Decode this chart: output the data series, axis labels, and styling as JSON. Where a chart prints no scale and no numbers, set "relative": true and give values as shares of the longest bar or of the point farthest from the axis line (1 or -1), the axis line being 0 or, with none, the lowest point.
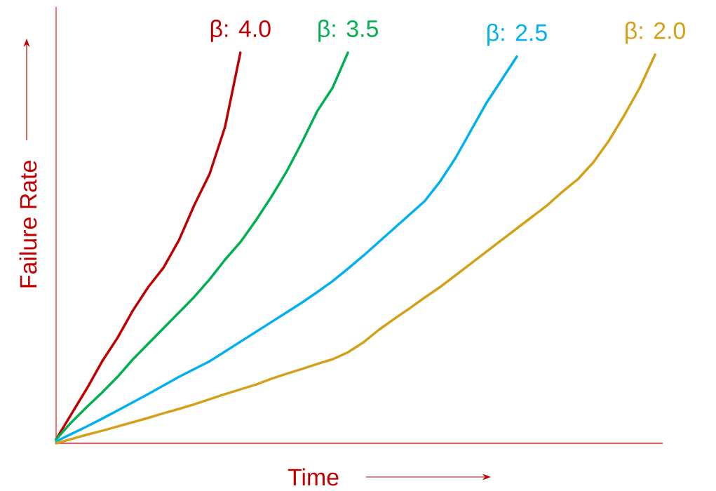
{
  "chart_data": {
    "type": "line",
    "relative": true,
    "xlabel": "Time",
    "ylabel": "Failure Rate",
    "categories": [
      null,
      null,
      null,
      null,
      null,
      null,
      null,
      null,
      null,
      null,
      null,
      null,
      null,
      null,
      null,
      null,
      null,
      null,
      null,
      null,
      null,
      null,
      null,
      null,
      null,
      null,
      null,
      null,
      null,
      null,
      null,
      null,
      null,
      null,
      null,
      null,
      null,
      null,
      null,
      null
    ],
    "series": [
      {
        "name": "β: 4.0",
        "color": "#c00000",
        "values": [
          0.01,
          0.075,
          0.14,
          0.21,
          0.27,
          0.34,
          0.4,
          0.45,
          0.52,
          0.61,
          0.69,
          0.81,
          1.0,
          null,
          null,
          null,
          null,
          null,
          null,
          null,
          null,
          null,
          null,
          null,
          null,
          null,
          null,
          null,
          null,
          null,
          null,
          null,
          null,
          null,
          null,
          null,
          null,
          null,
          null,
          null
        ]
      },
      {
        "name": "β: 3.5",
        "color": "#00b050",
        "values": [
          0.01,
          0.054,
          0.093,
          0.13,
          0.17,
          0.215,
          0.255,
          0.295,
          0.335,
          0.375,
          0.42,
          0.47,
          0.515,
          0.57,
          0.63,
          0.695,
          0.77,
          0.85,
          0.91,
          1.0,
          null,
          null,
          null,
          null,
          null,
          null,
          null,
          null,
          null,
          null,
          null,
          null,
          null,
          null,
          null,
          null,
          null,
          null,
          null,
          null
        ]
      },
      {
        "name": "β: 2.5",
        "color": "#00b0f0",
        "values": [
          0.005,
          0.024,
          0.043,
          0.063,
          0.084,
          0.105,
          0.126,
          0.148,
          0.17,
          0.19,
          0.21,
          0.235,
          0.26,
          0.285,
          0.31,
          0.335,
          0.36,
          0.387,
          0.415,
          0.447,
          0.48,
          0.515,
          0.55,
          0.585,
          0.62,
          0.67,
          0.73,
          0.8,
          0.87,
          0.93,
          0.99,
          null,
          null,
          null,
          null,
          null,
          null,
          null,
          null,
          null
        ]
      },
      {
        "name": "β: 2.0",
        "color": "#d4a017",
        "values": [
          0,
          0.011,
          0.022,
          0.032,
          0.043,
          0.054,
          0.065,
          0.077,
          0.088,
          0.1,
          0.113,
          0.126,
          0.138,
          0.15,
          0.165,
          0.178,
          0.19,
          0.203,
          0.215,
          0.233,
          0.258,
          0.29,
          0.318,
          0.345,
          0.373,
          0.4,
          0.43,
          0.46,
          0.49,
          0.52,
          0.55,
          0.58,
          0.61,
          0.645,
          0.677,
          0.72,
          0.775,
          0.84,
          0.91,
          0.995
        ]
      }
    ]
  }
}
